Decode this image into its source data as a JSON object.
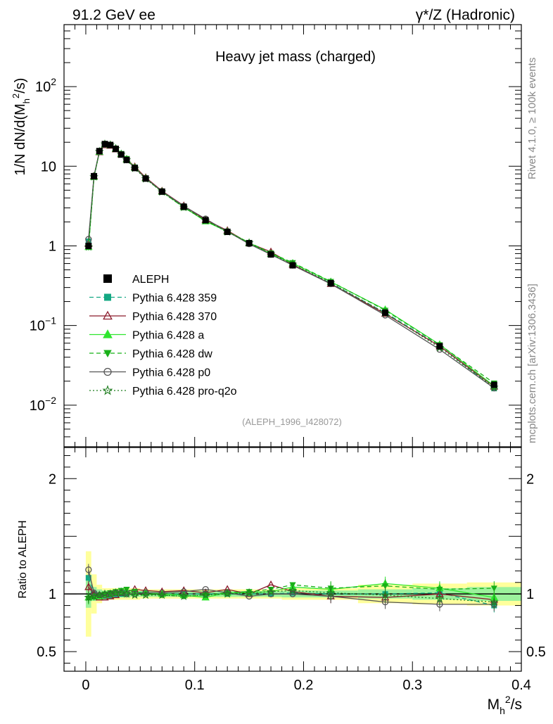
{
  "header": {
    "left": "91.2 GeV ee",
    "right": "γ*/Z (Hadronic)"
  },
  "side_labels": {
    "rivet": "Rivet 4.1.0, ≥ 100k events",
    "mcplots": "mcplots.cern.ch [arXiv:1306.3436]"
  },
  "chart_data": {
    "type": "line",
    "title": "Heavy jet mass (charged)",
    "watermark": "(ALEPH_1996_I428072)",
    "xlabel": "M_h^2/s",
    "ylabel": "1/N  dN/d(M_h^2/s)",
    "ratio_ylabel": "Ratio to ALEPH",
    "xlim": [
      -0.02,
      0.4
    ],
    "ylim": [
      0.003,
      600
    ],
    "ratio_ylim": [
      0.33,
      2.27
    ],
    "x_ticks": [
      0,
      0.1,
      0.2,
      0.3,
      0.4
    ],
    "x_tick_labels": [
      "0",
      "0.1",
      "0.2",
      "0.3",
      "0.4"
    ],
    "y_ticks": [
      {
        "value": 0.01,
        "base": "10",
        "exp": "−2"
      },
      {
        "value": 0.1,
        "base": "10",
        "exp": "−1"
      },
      {
        "value": 1,
        "base": "1",
        "exp": ""
      },
      {
        "value": 10,
        "base": "10",
        "exp": ""
      },
      {
        "value": 100,
        "base": "10",
        "exp": "2"
      }
    ],
    "ratio_ticks": [
      {
        "value": 0.5,
        "label": "0.5"
      },
      {
        "value": 1,
        "label": "1"
      },
      {
        "value": 2,
        "label": "2"
      }
    ],
    "x": [
      0.0025,
      0.0075,
      0.0125,
      0.0175,
      0.0225,
      0.0275,
      0.0325,
      0.0375,
      0.045,
      0.055,
      0.07,
      0.09,
      0.11,
      0.13,
      0.15,
      0.17,
      0.19,
      0.225,
      0.275,
      0.325,
      0.375
    ],
    "ref": {
      "name": "ALEPH",
      "values": [
        1.0,
        7.5,
        15.5,
        19.0,
        18.5,
        16.5,
        14.0,
        12.0,
        9.5,
        7.0,
        4.8,
        3.1,
        2.1,
        1.5,
        1.08,
        0.78,
        0.57,
        0.34,
        0.145,
        0.055,
        0.018
      ],
      "stat_band": [
        0.12,
        0.06,
        0.04,
        0.03,
        0.03,
        0.03,
        0.03,
        0.03,
        0.025,
        0.025,
        0.025,
        0.025,
        0.025,
        0.025,
        0.025,
        0.025,
        0.03,
        0.03,
        0.04,
        0.05,
        0.06
      ],
      "total_band": [
        0.37,
        0.17,
        0.08,
        0.05,
        0.05,
        0.05,
        0.05,
        0.05,
        0.05,
        0.04,
        0.04,
        0.04,
        0.04,
        0.04,
        0.04,
        0.04,
        0.05,
        0.05,
        0.08,
        0.09,
        0.1
      ]
    },
    "series": [
      {
        "name": "Pythia 6.428 359",
        "color": "#14a883",
        "dash": "6,4",
        "marker": "square",
        "ratio": [
          1.14,
          1.0,
          0.98,
          0.98,
          0.98,
          0.99,
          1.0,
          1.01,
          1.02,
          1.01,
          1.0,
          1.0,
          1.0,
          1.0,
          1.0,
          1.0,
          1.01,
          1.0,
          1.0,
          1.01,
          0.9
        ]
      },
      {
        "name": "Pythia 6.428 370",
        "color": "#8b1a2b",
        "dash": "",
        "marker": "triangle-open",
        "ratio": [
          1.06,
          1.0,
          0.97,
          0.97,
          0.98,
          0.99,
          1.01,
          1.02,
          1.04,
          1.03,
          1.02,
          1.03,
          1.01,
          1.04,
          1.0,
          1.08,
          1.02,
          0.98,
          0.97,
          1.0,
          0.95
        ]
      },
      {
        "name": "Pythia 6.428 a",
        "color": "#2ee62e",
        "dash": "",
        "marker": "triangle",
        "ratio": [
          0.97,
          0.98,
          0.98,
          0.99,
          1.0,
          1.01,
          1.02,
          1.02,
          1.01,
          1.01,
          1.0,
          0.99,
          0.97,
          1.01,
          1.01,
          1.02,
          1.06,
          1.04,
          1.09,
          1.05,
          0.97
        ]
      },
      {
        "name": "Pythia 6.428 dw",
        "color": "#18b018",
        "dash": "6,4",
        "marker": "triangle-down",
        "ratio": [
          0.96,
          0.97,
          0.99,
          1.0,
          1.01,
          1.02,
          1.03,
          1.04,
          1.02,
          1.0,
          0.99,
          0.98,
          0.99,
          1.01,
          1.02,
          1.04,
          1.08,
          1.05,
          1.07,
          1.04,
          1.05
        ]
      },
      {
        "name": "Pythia 6.428 p0",
        "color": "#555555",
        "dash": "",
        "marker": "circle-open",
        "ratio": [
          1.21,
          1.01,
          0.99,
          0.99,
          1.0,
          1.01,
          1.01,
          1.0,
          1.0,
          1.01,
          1.01,
          1.02,
          1.04,
          1.01,
          0.98,
          1.0,
          1.0,
          0.98,
          0.93,
          0.91,
          0.91
        ]
      },
      {
        "name": "Pythia 6.428 pro-q2o",
        "color": "#1e7d1e",
        "dash": "2,3",
        "marker": "star-open",
        "ratio": [
          0.97,
          0.98,
          0.99,
          1.0,
          1.0,
          1.01,
          1.01,
          1.0,
          0.99,
          0.99,
          0.99,
          0.98,
          0.99,
          1.0,
          1.01,
          1.02,
          1.03,
          1.01,
          0.99,
          0.96,
          0.93
        ]
      }
    ]
  }
}
